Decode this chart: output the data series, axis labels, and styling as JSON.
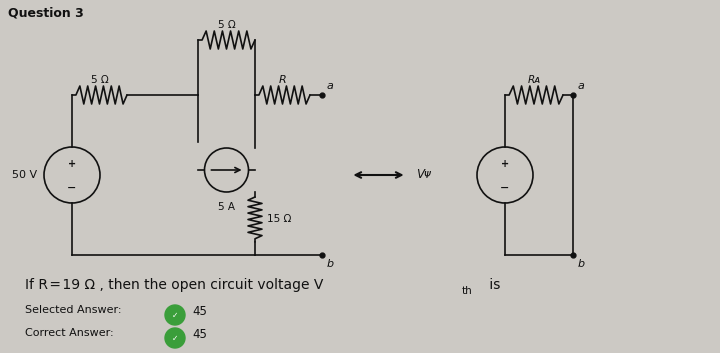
{
  "title": "Question 3",
  "bg_color": "#ccc9c4",
  "panel_color": "#dedad5",
  "text_color": "#111111",
  "figsize": [
    7.2,
    3.53
  ],
  "dpi": 100,
  "check_color": "#3a9e3a",
  "selected_label": "Selected Answer:",
  "correct_label": "Correct Answer:",
  "answer_value": "45"
}
